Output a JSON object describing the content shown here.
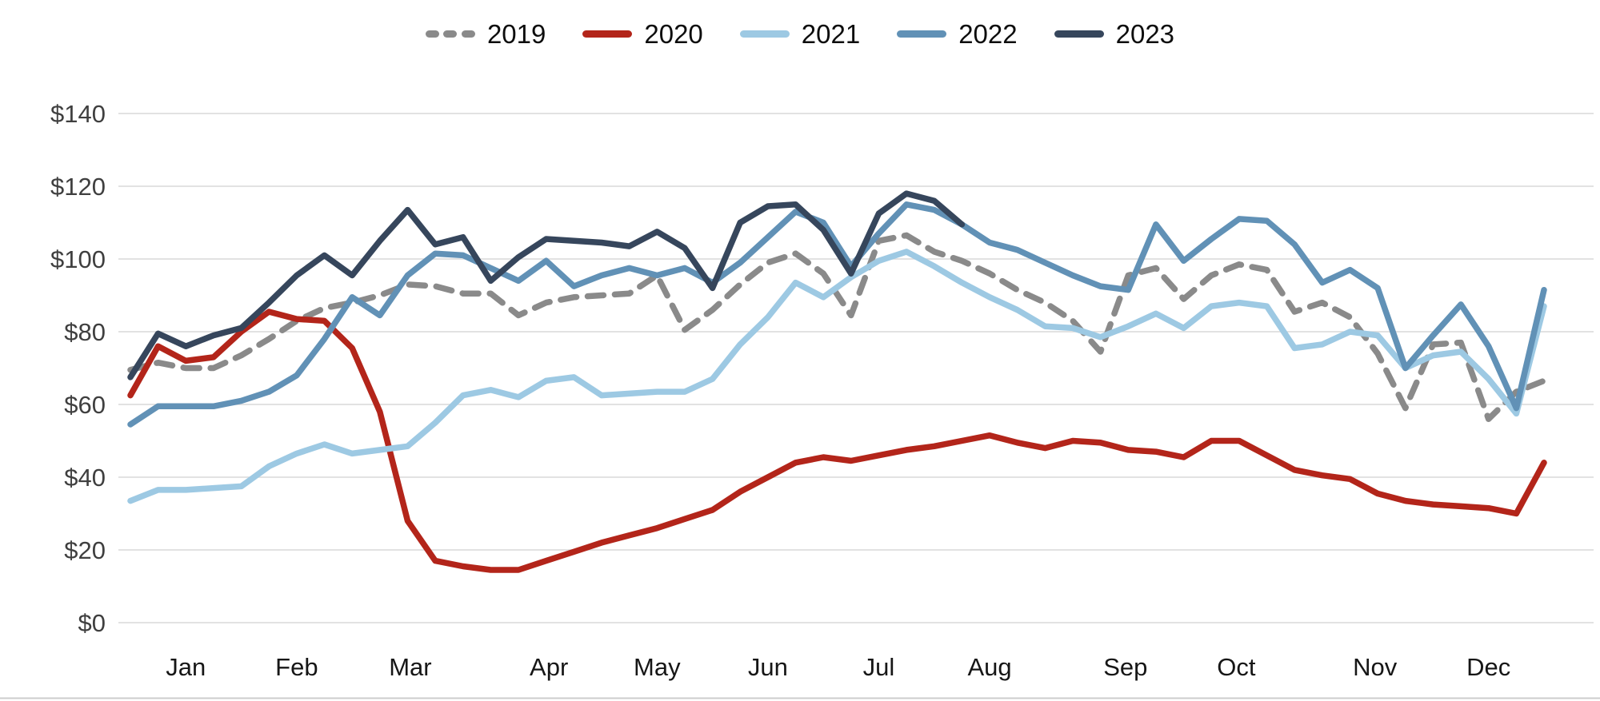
{
  "chart_data": {
    "type": "line",
    "title": "",
    "xlabel": "",
    "ylabel": "",
    "unit_prefix": "$",
    "grid": true,
    "legend_position": "top",
    "points_per_year": 52,
    "x_axis": {
      "categories": [
        "Jan",
        "Feb",
        "Mar",
        "Apr",
        "May",
        "Jun",
        "Jul",
        "Aug",
        "Sep",
        "Oct",
        "Nov",
        "Dec"
      ],
      "tick_week_centers": [
        3,
        7,
        11.1,
        16.1,
        20,
        24,
        28,
        32,
        36.9,
        40.9,
        45.9,
        50
      ]
    },
    "y_axis": {
      "min": 0,
      "max": 140,
      "step": 20,
      "tick_labels": [
        "$0",
        "$20",
        "$40",
        "$60",
        "$80",
        "$100",
        "$120",
        "$140"
      ]
    },
    "colors": {
      "gridline": "#d9d9d9",
      "y_tick_text": "#3f3f3f",
      "x_tick_text": "#161616",
      "legend_text": "#0d0d0d",
      "bottom_border": "#cccccc"
    },
    "series": [
      {
        "name": "2019",
        "color": "#8a8a8a",
        "dash": true,
        "values": [
          69.5,
          71.5,
          70,
          70,
          73.5,
          78,
          83,
          86.5,
          88,
          90,
          93,
          92.5,
          90.5,
          90.5,
          84.5,
          88,
          89.5,
          90,
          90.5,
          95.5,
          80.5,
          86,
          93,
          99,
          101.5,
          96,
          84.5,
          105,
          106.5,
          102,
          99.5,
          96,
          91.5,
          88,
          83,
          74.5,
          95.5,
          97.5,
          89,
          95.5,
          98.5,
          97,
          85.5,
          88,
          84,
          74,
          59,
          76.5,
          77,
          56,
          63.5,
          66.5
        ]
      },
      {
        "name": "2020",
        "color": "#b3251a",
        "dash": false,
        "values": [
          62.5,
          76,
          72,
          73,
          80,
          85.5,
          83.5,
          83,
          75.5,
          58,
          28,
          17,
          15.5,
          14.5,
          14.5,
          17,
          19.5,
          22,
          24,
          26,
          28.5,
          31,
          36,
          40,
          44,
          45.5,
          44.5,
          46,
          47.5,
          48.5,
          50,
          51.5,
          49.5,
          48,
          50,
          49.5,
          47.5,
          47,
          45.5,
          50,
          50,
          46,
          42,
          40.5,
          39.5,
          35.5,
          33.5,
          32.5,
          32,
          31.5,
          30,
          44
        ]
      },
      {
        "name": "2021",
        "color": "#9dc9e3",
        "dash": false,
        "values": [
          33.5,
          36.5,
          36.5,
          37,
          37.5,
          43,
          46.5,
          49,
          46.5,
          47.5,
          48.5,
          55,
          62.5,
          64,
          62,
          66.5,
          67.5,
          62.5,
          63,
          63.5,
          63.5,
          67,
          76.5,
          84,
          93.5,
          89.5,
          95,
          99.5,
          102,
          98,
          93.5,
          89.5,
          86,
          81.5,
          81,
          78.5,
          81.5,
          85,
          81,
          87,
          88,
          87,
          75.5,
          76.5,
          80,
          79,
          70,
          73.5,
          74.5,
          67,
          57.5,
          87
        ]
      },
      {
        "name": "2022",
        "color": "#6191b6",
        "dash": false,
        "values": [
          54.5,
          59.5,
          59.5,
          59.5,
          61,
          63.5,
          68,
          78,
          89.5,
          84.5,
          95.5,
          101.5,
          101,
          97.5,
          94,
          99.5,
          92.5,
          95.5,
          97.5,
          95.5,
          97.5,
          93.5,
          99,
          106,
          113,
          110,
          98,
          107,
          115,
          113.5,
          109.5,
          104.5,
          102.5,
          99,
          95.5,
          92.5,
          91.5,
          109.5,
          99.5,
          105.5,
          111,
          110.5,
          104,
          93.5,
          97,
          92,
          70,
          79,
          87.5,
          76,
          59,
          91.5
        ]
      },
      {
        "name": "2023",
        "color": "#36465c",
        "dash": false,
        "values": [
          67.5,
          79.5,
          76,
          79,
          81,
          88,
          95.5,
          101,
          95.5,
          105,
          113.5,
          104,
          106,
          94,
          100.5,
          105.5,
          105,
          104.5,
          103.5,
          107.5,
          103,
          92,
          110,
          114.5,
          115,
          108,
          96,
          112.5,
          118,
          116,
          109.5
        ]
      }
    ]
  }
}
